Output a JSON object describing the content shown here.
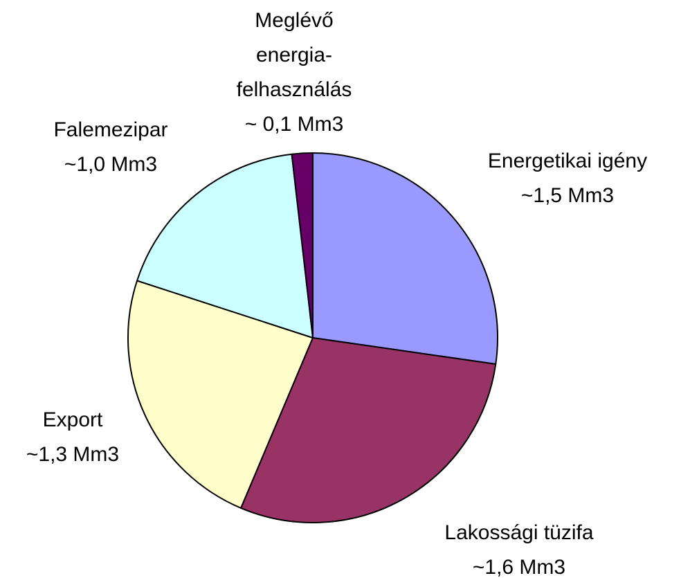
{
  "chart_data": {
    "type": "pie",
    "categories": [
      "Energetikai igény",
      "Lakossági tüzifa",
      "Export",
      "Falemezipar",
      "Meglévő energia-felhasználás"
    ],
    "values": [
      1.5,
      1.6,
      1.3,
      1.0,
      0.1
    ],
    "value_labels": [
      "~1,5 Mm3",
      "~1,6 Mm3",
      "~1,3 Mm3",
      "~1,0 Mm3",
      "~ 0,1 Mm3"
    ],
    "colors": [
      "#9999ff",
      "#993366",
      "#ffffcc",
      "#ccffff",
      "#660066"
    ]
  }
}
